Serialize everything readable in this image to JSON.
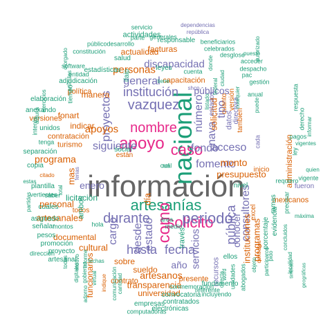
{
  "palette": {
    "green": "#1b9e77",
    "orange": "#d95f02",
    "purple": "#7570b3",
    "magenta": "#e7298a",
    "gray": "#666666"
  },
  "words": [
    {
      "text": "información",
      "color": "#666666"
    },
    {
      "text": "nacional",
      "color": "#1b9e77"
    },
    {
      "text": "artesanías",
      "color": "#1b9e77"
    },
    {
      "text": "apoyo",
      "color": "#e7298a"
    },
    {
      "text": "nombre",
      "color": "#e7298a"
    },
    {
      "text": "caso",
      "color": "#e7298a"
    },
    {
      "text": "solicito",
      "color": "#e7298a"
    },
    {
      "text": "como",
      "color": "#e7298a"
    },
    {
      "text": "periodo",
      "color": "#7570b3"
    },
    {
      "text": "fomento",
      "color": "#7570b3"
    },
    {
      "text": "fondo",
      "color": "#7570b3"
    },
    {
      "text": "institución",
      "color": "#7570b3"
    },
    {
      "text": "vazquez",
      "color": "#7570b3"
    },
    {
      "text": "proyectos",
      "color": "#7570b3"
    },
    {
      "text": "durante",
      "color": "#7570b3"
    },
    {
      "text": "siguiente",
      "color": "#7570b3"
    },
    {
      "text": "estado",
      "color": "#7570b3"
    },
    {
      "text": "hasta",
      "color": "#7570b3"
    },
    {
      "text": "fecha",
      "color": "#7570b3"
    },
    {
      "text": "pública",
      "color": "#7570b3"
    },
    {
      "text": "consultores",
      "color": "#7570b3"
    },
    {
      "text": "desde",
      "color": "#7570b3"
    },
    {
      "text": "cargo",
      "color": "#7570b3"
    },
    {
      "text": "enero",
      "color": "#7570b3"
    },
    {
      "text": "acceso",
      "color": "#7570b3"
    },
    {
      "text": "nava",
      "color": "#7570b3"
    },
    {
      "text": "número",
      "color": "#7570b3"
    },
    {
      "text": "públicos",
      "color": "#7570b3"
    },
    {
      "text": "tipo",
      "color": "#7570b3"
    },
    {
      "text": "discapacidad",
      "color": "#7570b3"
    },
    {
      "text": "general",
      "color": "#7570b3"
    },
    {
      "text": "servicios",
      "color": "#7570b3"
    },
    {
      "text": "conocer",
      "color": "#7570b3"
    },
    {
      "text": "año",
      "color": "#7570b3"
    },
    {
      "text": "artesanos",
      "color": "#d95f02"
    },
    {
      "text": "apoyos",
      "color": "#d95f02"
    },
    {
      "text": "programa",
      "color": "#d95f02"
    },
    {
      "text": "personas",
      "color": "#d95f02"
    },
    {
      "text": "monto",
      "color": "#d95f02"
    },
    {
      "text": "presupuesto",
      "color": "#d95f02"
    },
    {
      "text": "transparencia",
      "color": "#d95f02"
    },
    {
      "text": "artesanales",
      "color": "#d95f02"
    },
    {
      "text": "cultural",
      "color": "#d95f02"
    },
    {
      "text": "documental",
      "color": "#d95f02"
    },
    {
      "text": "funcionarios",
      "color": "#d95f02"
    },
    {
      "text": "universidad",
      "color": "#d95f02"
    },
    {
      "text": "sueldo",
      "color": "#d95f02"
    },
    {
      "text": "indicar",
      "color": "#d95f02"
    },
    {
      "text": "fonart",
      "color": "#d95f02"
    },
    {
      "text": "manera",
      "color": "#d95f02"
    },
    {
      "text": "actualidad",
      "color": "#d95f02"
    },
    {
      "text": "facturas",
      "color": "#d95f02"
    },
    {
      "text": "personal",
      "color": "#d95f02"
    },
    {
      "text": "sobre",
      "color": "#d95f02"
    },
    {
      "text": "contrato",
      "color": "#d95f02"
    },
    {
      "text": "presente",
      "color": "#d95f02"
    },
    {
      "text": "instituciones",
      "color": "#d95f02"
    },
    {
      "text": "mas",
      "color": "#d95f02"
    },
    {
      "text": "día",
      "color": "#d95f02"
    },
    {
      "text": "solicitud",
      "color": "#d95f02"
    },
    {
      "text": "programas",
      "color": "#d95f02"
    },
    {
      "text": "administración",
      "color": "#d95f02"
    },
    {
      "text": "mexicanos",
      "color": "#d95f02"
    },
    {
      "text": "fueron",
      "color": "#7570b3"
    },
    {
      "text": "inicio",
      "color": "#d95f02"
    },
    {
      "text": "recursos",
      "color": "#7570b3"
    },
    {
      "text": "fundamento",
      "color": "#1b9e77"
    },
    {
      "text": "convocatoria",
      "color": "#1b9e77"
    },
    {
      "text": "contratados",
      "color": "#1b9e77"
    },
    {
      "text": "electrónicas",
      "color": "#1b9e77"
    },
    {
      "text": "empresas",
      "color": "#1b9e77"
    },
    {
      "text": "computadoras",
      "color": "#1b9e77"
    },
    {
      "text": "conmemoracion",
      "color": "#1b9e77"
    },
    {
      "text": "referente",
      "color": "#1b9e77"
    },
    {
      "text": "incluyendo",
      "color": "#1b9e77"
    },
    {
      "text": "versiones",
      "color": "#d95f02"
    },
    {
      "text": "contratación",
      "color": "#d95f02"
    },
    {
      "text": "turismo",
      "color": "#d95f02"
    },
    {
      "text": "política",
      "color": "#d95f02"
    },
    {
      "text": "elaboración",
      "color": "#1b9e77"
    },
    {
      "text": "anexando",
      "color": "#1b9e77"
    },
    {
      "text": "unidos",
      "color": "#1b9e77"
    },
    {
      "text": "separación",
      "color": "#1b9e77"
    },
    {
      "text": "copia",
      "color": "#1b9e77"
    },
    {
      "text": "cuales",
      "color": "#1b9e77"
    },
    {
      "text": "señalar",
      "color": "#1b9e77"
    },
    {
      "text": "promoción",
      "color": "#1b9e77"
    },
    {
      "text": "proyecto",
      "color": "#1b9e77"
    },
    {
      "text": "artesanal",
      "color": "#1b9e77"
    },
    {
      "text": "pesos",
      "color": "#1b9e77"
    },
    {
      "text": "asignado",
      "color": "#1b9e77"
    },
    {
      "text": "todos",
      "color": "#d95f02"
    },
    {
      "text": "capacitación",
      "color": "#d95f02"
    },
    {
      "text": "responsable",
      "color": "#1b9e77"
    },
    {
      "text": "actividades",
      "color": "#1b9e77"
    },
    {
      "text": "salud",
      "color": "#1b9e77"
    },
    {
      "text": "estadísticas",
      "color": "#1b9e77"
    },
    {
      "text": "adjudicación",
      "color": "#1b9e77"
    },
    {
      "text": "entidad",
      "color": "#1b9e77"
    },
    {
      "text": "software",
      "color": "#1b9e77"
    },
    {
      "text": "constitución",
      "color": "#1b9e77"
    },
    {
      "text": "públicodesarrollo",
      "color": "#1b9e77"
    },
    {
      "text": "servicio",
      "color": "#1b9e77"
    },
    {
      "text": "parte",
      "color": "#1b9e77"
    },
    {
      "text": "generales",
      "color": "#1b9e77"
    },
    {
      "text": "dependencias",
      "color": "#7570b3"
    },
    {
      "text": "república",
      "color": "#7570b3"
    },
    {
      "text": "beneficiarios",
      "color": "#1b9e77"
    },
    {
      "text": "celebrados",
      "color": "#1b9e77"
    },
    {
      "text": "desglose",
      "color": "#1b9e77"
    },
    {
      "text": "acceder",
      "color": "#1b9e77"
    },
    {
      "text": "despacho",
      "color": "#1b9e77"
    },
    {
      "text": "puesto",
      "color": "#1b9e77"
    },
    {
      "text": "pac",
      "color": "#1b9e77"
    },
    {
      "text": "gestión",
      "color": "#1b9e77"
    },
    {
      "text": "anual",
      "color": "#1b9e77"
    },
    {
      "text": "respuesta",
      "color": "#1b9e77"
    },
    {
      "text": "derecho",
      "color": "#1b9e77"
    },
    {
      "text": "informar",
      "color": "#1b9e77"
    },
    {
      "text": "pagos",
      "color": "#1b9e77"
    },
    {
      "text": "ley",
      "color": "#1b9e77"
    },
    {
      "text": "vigentes",
      "color": "#1b9e77"
    },
    {
      "text": "vigente",
      "color": "#1b9e77"
    },
    {
      "text": "quien",
      "color": "#1b9e77"
    },
    {
      "text": "requiero",
      "color": "#1b9e77"
    },
    {
      "text": "precisar",
      "color": "#1b9e77"
    },
    {
      "text": "evidencia",
      "color": "#1b9e77"
    },
    {
      "text": "porcentaje",
      "color": "#1b9e77"
    },
    {
      "text": "ramas",
      "color": "#1b9e77"
    },
    {
      "text": "concluidos",
      "color": "#1b9e77"
    },
    {
      "text": "máxima",
      "color": "#1b9e77"
    },
    {
      "text": "participaron",
      "color": "#1b9e77"
    },
    {
      "text": "unidades",
      "color": "#1b9e77"
    },
    {
      "text": "abogados",
      "color": "#1b9e77"
    },
    {
      "text": "directa",
      "color": "#1b9e77"
    },
    {
      "text": "word",
      "color": "#1b9e77"
    },
    {
      "text": "ellos",
      "color": "#1b9e77"
    },
    {
      "text": "excel",
      "color": "#d95f02"
    },
    {
      "text": "nivel",
      "color": "#1b9e77"
    },
    {
      "text": "área",
      "color": "#1b9e77"
    },
    {
      "text": "medio",
      "color": "#1b9e77"
    },
    {
      "text": "social",
      "color": "#1b9e77"
    },
    {
      "text": "están",
      "color": "#d95f02"
    },
    {
      "text": "tiene",
      "color": "#1b9e77"
    },
    {
      "text": "shcp",
      "color": "#7570b3"
    },
    {
      "text": "cuenta",
      "color": "#1b9e77"
    },
    {
      "text": "dirección",
      "color": "#1b9e77"
    },
    {
      "text": "plantilla",
      "color": "#1b9e77"
    },
    {
      "text": "vertientes",
      "color": "#1b9e77"
    },
    {
      "text": "saber",
      "color": "#1b9e77"
    },
    {
      "text": "montos",
      "color": "#1b9e77"
    },
    {
      "text": "hola",
      "color": "#1b9e77"
    },
    {
      "text": "estas",
      "color": "#1b9e77"
    },
    {
      "text": "tenga",
      "color": "#1b9e77"
    },
    {
      "text": "interés",
      "color": "#1b9e77"
    },
    {
      "text": "partidas",
      "color": "#1b9e77"
    },
    {
      "text": "alguna",
      "color": "#1b9e77"
    },
    {
      "text": "ejercicios",
      "color": "#1b9e77"
    },
    {
      "text": "otorgado",
      "color": "#1b9e77"
    },
    {
      "text": "tiempo",
      "color": "#1b9e77"
    },
    {
      "text": "artículos",
      "color": "#1b9e77"
    },
    {
      "text": "ifaip",
      "color": "#1b9e77"
    },
    {
      "text": "leyes",
      "color": "#1b9e77"
    },
    {
      "text": "también",
      "color": "#d95f02"
    },
    {
      "text": "versión",
      "color": "#d95f02"
    },
    {
      "text": "datos",
      "color": "#7570b3"
    },
    {
      "text": "directora",
      "color": "#7570b3"
    },
    {
      "text": "cuanto",
      "color": "#d95f02"
    },
    {
      "text": "estados",
      "color": "#7570b3"
    },
    {
      "text": "cada",
      "color": "#7570b3"
    },
    {
      "text": "ferias",
      "color": "#7570b3"
    },
    {
      "text": "total",
      "color": "#1b9e77"
    },
    {
      "text": "ambos",
      "color": "#1b9e77"
    },
    {
      "text": "licitación",
      "color": "#1b9e77"
    },
    {
      "text": "citado",
      "color": "#d95f02"
    },
    {
      "text": "indique",
      "color": "#d95f02"
    },
    {
      "text": "comunicación",
      "color": "#1b9e77"
    },
    {
      "text": "cantidad",
      "color": "#1b9e77"
    },
    {
      "text": "adorno",
      "color": "#1b9e77"
    },
    {
      "text": "virtual",
      "color": "#1b9e77"
    },
    {
      "text": "digitales",
      "color": "#1b9e77"
    },
    {
      "text": "gobierno",
      "color": "#1b9e77"
    },
    {
      "text": "motivo",
      "color": "#1b9e77"
    },
    {
      "text": "informe",
      "color": "#1b9e77"
    },
    {
      "text": "todas",
      "color": "#1b9e77"
    },
    {
      "text": "fechas",
      "color": "#1b9e77"
    },
    {
      "text": "través",
      "color": "#1b9e77"
    },
    {
      "text": "pido",
      "color": "#1b9e77"
    },
    {
      "text": "contratos",
      "color": "#d95f02"
    },
    {
      "text": "objeto",
      "color": "#1b9e77"
    },
    {
      "text": "localidad",
      "color": "#1b9e77"
    },
    {
      "text": "timbrado",
      "color": "#1b9e77"
    },
    {
      "text": "geográficas",
      "color": "#1b9e77"
    },
    {
      "text": "autorizado",
      "color": "#1b9e77"
    },
    {
      "text": "cualquier",
      "color": "#1b9e77"
    },
    {
      "text": "listado",
      "color": "#1b9e77"
    },
    {
      "text": "ciudad",
      "color": "#1b9e77"
    },
    {
      "text": "federal",
      "color": "#1b9e77"
    },
    {
      "text": "donde",
      "color": "#1b9e77"
    },
    {
      "text": "puede",
      "color": "#1b9e77"
    },
    {
      "text": "rol",
      "color": "#1b9e77"
    },
    {
      "text": "cuál",
      "color": "#1b9e77"
    }
  ]
}
